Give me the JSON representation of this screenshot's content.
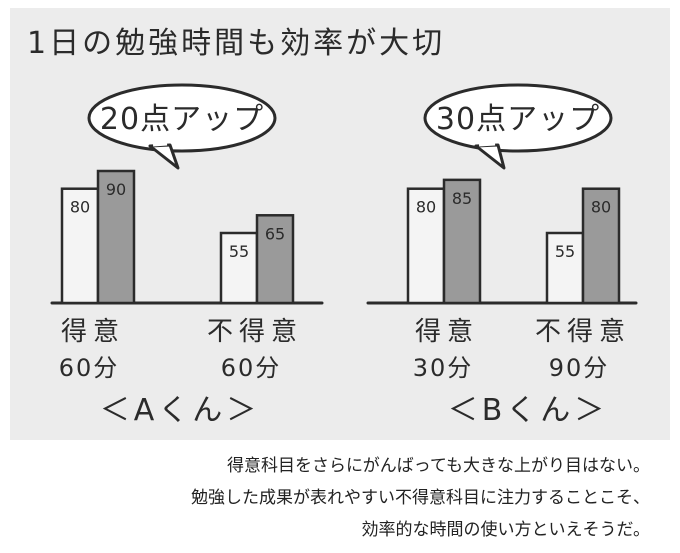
{
  "title": "1日の勉強時間も効率が大切",
  "caption": [
    "得意科目をさらにがんばっても大きな上がり目はない。",
    "勉強した成果が表れやすい不得意科目に注力することこそ、",
    "効率的な時間の使い方といえそうだ。"
  ],
  "colors": {
    "before": "#f4f4f4",
    "after": "#9a9a9a",
    "frame": "#ececec",
    "ink": "#2b2b2b"
  },
  "chart_data": [
    {
      "type": "bar",
      "name": "＜Aくん＞",
      "callout": "20点アップ",
      "categories": [
        "得意",
        "不得意"
      ],
      "category_times": [
        "60分",
        "60分"
      ],
      "series": [
        {
          "values": [
            80,
            55
          ]
        },
        {
          "values": [
            90,
            65
          ]
        }
      ]
    },
    {
      "type": "bar",
      "name": "＜Bくん＞",
      "callout": "30点アップ",
      "categories": [
        "得意",
        "不得意"
      ],
      "category_times": [
        "30分",
        "90分"
      ],
      "series": [
        {
          "values": [
            80,
            55
          ]
        },
        {
          "values": [
            85,
            80
          ]
        }
      ]
    }
  ]
}
